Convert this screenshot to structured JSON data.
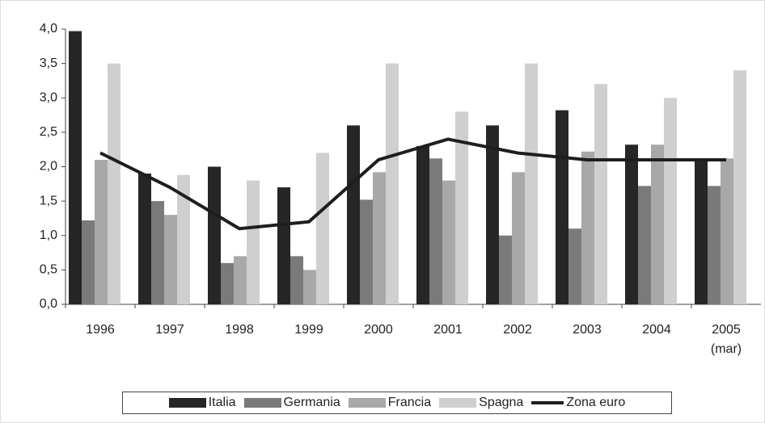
{
  "chart_data": {
    "type": "bar",
    "categories": [
      "1996",
      "1997",
      "1998",
      "1999",
      "2000",
      "2001",
      "2002",
      "2003",
      "2004",
      "2005 (mar)"
    ],
    "series": [
      {
        "name": "Italia",
        "type": "bar",
        "color": "#262626",
        "values": [
          3.97,
          1.9,
          2.0,
          1.7,
          2.6,
          2.3,
          2.6,
          2.82,
          2.32,
          2.1
        ]
      },
      {
        "name": "Germania",
        "type": "bar",
        "color": "#7a7a7a",
        "values": [
          1.22,
          1.5,
          0.6,
          0.7,
          1.52,
          2.12,
          1.0,
          1.1,
          1.72,
          1.72
        ]
      },
      {
        "name": "Francia",
        "type": "bar",
        "color": "#a8a8a8",
        "values": [
          2.1,
          1.3,
          0.7,
          0.5,
          1.92,
          1.8,
          1.92,
          2.22,
          2.32,
          2.12
        ]
      },
      {
        "name": "Spagna",
        "type": "bar",
        "color": "#cfcfcf",
        "values": [
          3.5,
          1.88,
          1.8,
          2.2,
          3.5,
          2.8,
          3.5,
          3.2,
          3.0,
          3.4
        ]
      },
      {
        "name": "Zona euro",
        "type": "line",
        "color": "#1e1e1e",
        "values": [
          2.2,
          1.7,
          1.1,
          1.2,
          2.1,
          2.4,
          2.2,
          2.1,
          2.1,
          2.1
        ]
      }
    ],
    "ylim": [
      0,
      4
    ],
    "yticks": [
      {
        "value": 0,
        "label": "0,0"
      },
      {
        "value": 0.5,
        "label": "0,5"
      },
      {
        "value": 1,
        "label": "1,0"
      },
      {
        "value": 1.5,
        "label": "1,5"
      },
      {
        "value": 2,
        "label": "2,0"
      },
      {
        "value": 2.5,
        "label": "2,5"
      },
      {
        "value": 3,
        "label": "3,0"
      },
      {
        "value": 3.5,
        "label": "3,5"
      },
      {
        "value": 4,
        "label": "4,0"
      }
    ],
    "grid": false
  }
}
